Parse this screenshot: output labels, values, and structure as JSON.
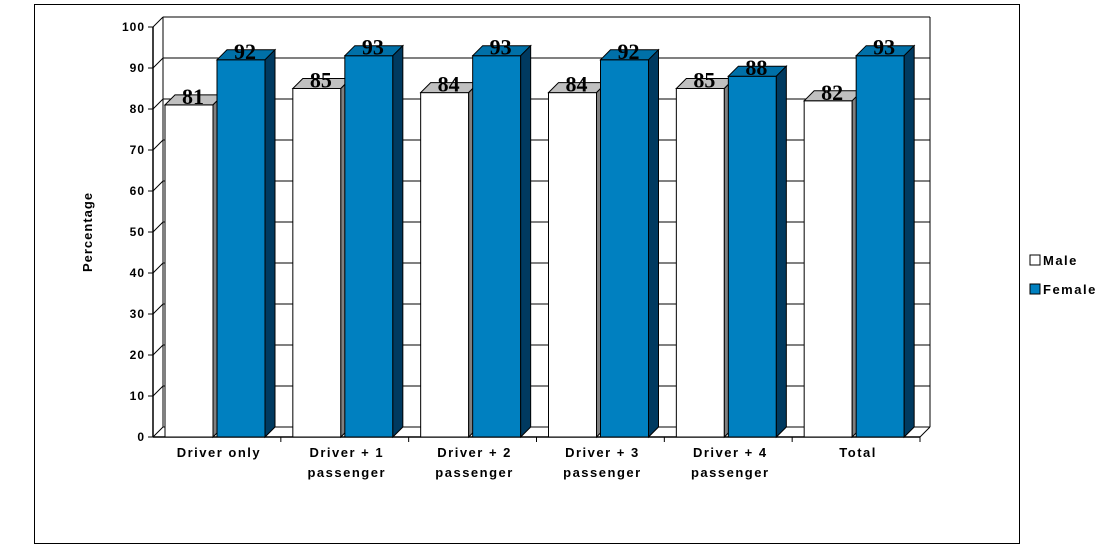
{
  "chart_data": {
    "type": "bar",
    "title": "",
    "xlabel": "",
    "ylabel": "Percentage",
    "ylim": [
      0,
      100
    ],
    "yticks": [
      0,
      10,
      20,
      30,
      40,
      50,
      60,
      70,
      80,
      90,
      100
    ],
    "grid": true,
    "legend_position": "right",
    "categories": [
      [
        "Driver only"
      ],
      [
        "Driver + 1",
        "passenger"
      ],
      [
        "Driver + 2",
        "passenger"
      ],
      [
        "Driver + 3",
        "passenger"
      ],
      [
        "Driver + 4",
        "passenger"
      ],
      [
        "Total"
      ]
    ],
    "series": [
      {
        "name": "Male",
        "values": [
          81,
          85,
          84,
          84,
          85,
          82
        ],
        "color": "#ffffff",
        "top_color": "#c0c0c0",
        "side_color": "#808080"
      },
      {
        "name": "Female",
        "values": [
          92,
          93,
          93,
          92,
          88,
          93
        ],
        "color": "#0080c0",
        "top_color": "#0070a8",
        "side_color": "#003a60"
      }
    ]
  }
}
